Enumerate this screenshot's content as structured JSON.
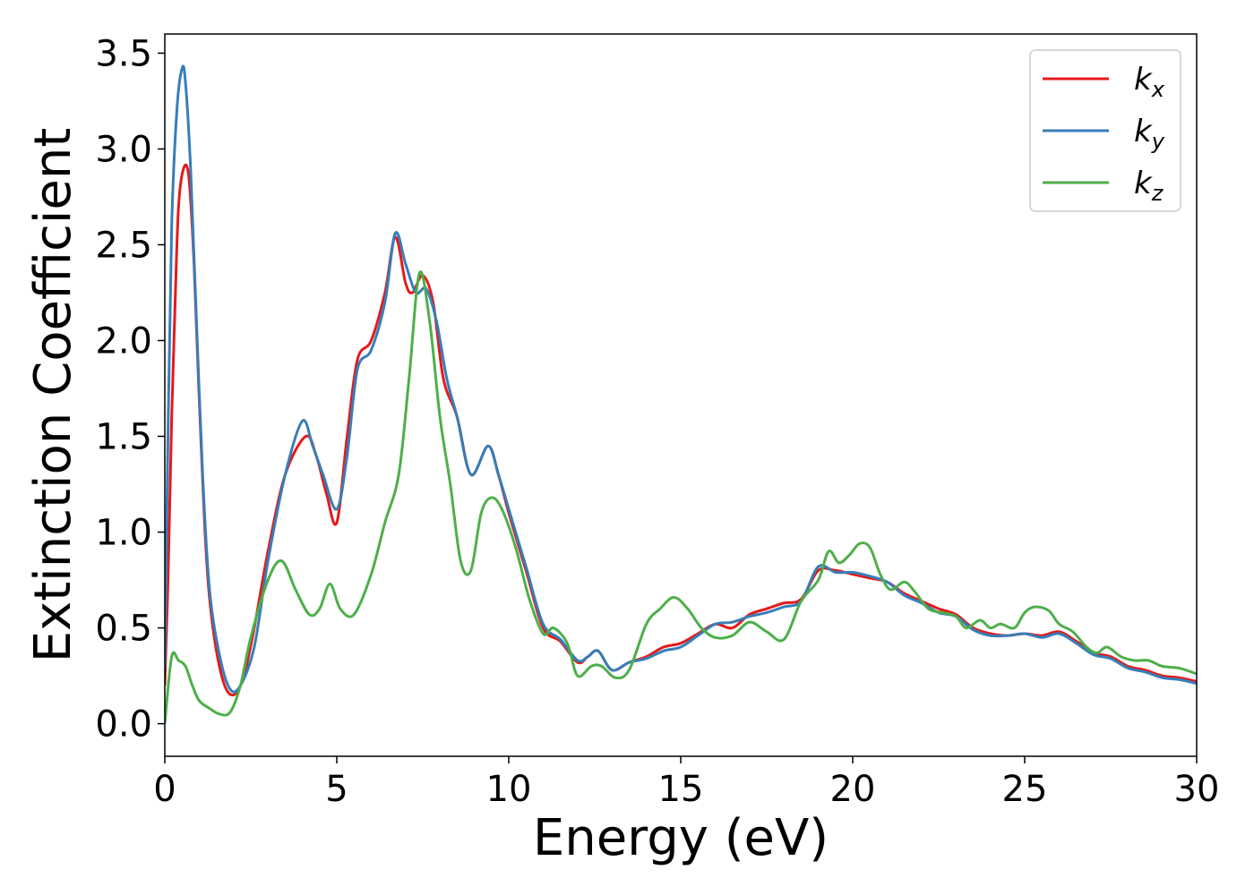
{
  "chart_data": {
    "type": "line",
    "title": "",
    "xlabel": "Energy (eV)",
    "ylabel": "Extinction Coefficient",
    "xlim": [
      0,
      30
    ],
    "ylim": [
      -0.17,
      3.6
    ],
    "xticks": [
      0,
      5,
      10,
      15,
      20,
      25,
      30
    ],
    "xtick_labels": [
      "0",
      "5",
      "10",
      "15",
      "20",
      "25",
      "30"
    ],
    "yticks": [
      0.0,
      0.5,
      1.0,
      1.5,
      2.0,
      2.5,
      3.0,
      3.5
    ],
    "ytick_labels": [
      "0.0",
      "0.5",
      "1.0",
      "1.5",
      "2.0",
      "2.5",
      "3.0",
      "3.5"
    ],
    "grid": false,
    "legend_position": "top-right",
    "series": [
      {
        "name": "k",
        "subscript": "x",
        "color": "#e41a1c",
        "x": [
          0,
          0.1,
          0.2,
          0.3,
          0.4,
          0.55,
          0.7,
          0.85,
          1.0,
          1.2,
          1.4,
          1.7,
          2.0,
          2.3,
          2.6,
          3.0,
          3.5,
          4.1,
          4.4,
          4.7,
          5.0,
          5.3,
          5.6,
          6.0,
          6.4,
          6.7,
          7.0,
          7.2,
          7.5,
          7.8,
          8.1,
          8.5,
          8.9,
          9.4,
          9.7,
          10.0,
          10.5,
          11.0,
          11.5,
          12.0,
          12.3,
          12.6,
          13.0,
          13.5,
          14.0,
          14.5,
          15.0,
          15.5,
          16.0,
          16.5,
          17.0,
          17.5,
          18.0,
          18.5,
          19.0,
          19.5,
          20.0,
          20.5,
          21.0,
          21.5,
          22.0,
          22.5,
          23.0,
          23.5,
          24.0,
          24.5,
          25.0,
          25.5,
          26.0,
          26.5,
          27.0,
          27.5,
          28.0,
          28.5,
          29.0,
          29.5,
          30.0
        ],
        "y": [
          0.2,
          0.8,
          1.6,
          2.2,
          2.7,
          2.9,
          2.85,
          2.4,
          1.7,
          0.9,
          0.5,
          0.22,
          0.15,
          0.25,
          0.5,
          0.9,
          1.3,
          1.5,
          1.4,
          1.2,
          1.05,
          1.5,
          1.9,
          2.0,
          2.25,
          2.54,
          2.3,
          2.25,
          2.34,
          2.2,
          1.8,
          1.6,
          1.3,
          1.45,
          1.3,
          1.1,
          0.8,
          0.5,
          0.43,
          0.32,
          0.35,
          0.38,
          0.28,
          0.32,
          0.35,
          0.4,
          0.42,
          0.47,
          0.52,
          0.5,
          0.57,
          0.6,
          0.63,
          0.65,
          0.8,
          0.8,
          0.78,
          0.76,
          0.74,
          0.68,
          0.64,
          0.6,
          0.57,
          0.5,
          0.47,
          0.46,
          0.47,
          0.46,
          0.48,
          0.43,
          0.37,
          0.35,
          0.3,
          0.28,
          0.25,
          0.24,
          0.22
        ]
      },
      {
        "name": "k",
        "subscript": "y",
        "color": "#377eb8",
        "x": [
          0,
          0.1,
          0.2,
          0.35,
          0.5,
          0.6,
          0.75,
          0.9,
          1.1,
          1.3,
          1.6,
          1.9,
          2.2,
          2.6,
          3.0,
          3.5,
          4.0,
          4.3,
          4.6,
          5.0,
          5.3,
          5.6,
          6.0,
          6.4,
          6.7,
          7.0,
          7.3,
          7.6,
          7.9,
          8.2,
          8.5,
          8.9,
          9.4,
          9.7,
          10.0,
          10.5,
          11.0,
          11.5,
          12.0,
          12.3,
          12.6,
          13.0,
          13.5,
          14.0,
          14.5,
          15.0,
          15.5,
          16.0,
          16.5,
          17.0,
          17.5,
          18.0,
          18.5,
          19.0,
          19.5,
          20.0,
          20.5,
          21.0,
          21.5,
          22.0,
          22.5,
          23.0,
          23.5,
          24.0,
          24.5,
          25.0,
          25.5,
          26.0,
          26.5,
          27.0,
          27.5,
          28.0,
          28.5,
          29.0,
          29.5,
          30.0
        ],
        "y": [
          0.3,
          1.6,
          2.6,
          3.2,
          3.42,
          3.35,
          2.9,
          2.2,
          1.3,
          0.7,
          0.35,
          0.18,
          0.2,
          0.4,
          0.85,
          1.3,
          1.58,
          1.45,
          1.3,
          1.12,
          1.4,
          1.85,
          1.95,
          2.2,
          2.56,
          2.4,
          2.25,
          2.27,
          2.1,
          1.8,
          1.6,
          1.3,
          1.45,
          1.3,
          1.12,
          0.82,
          0.52,
          0.44,
          0.33,
          0.35,
          0.38,
          0.28,
          0.32,
          0.34,
          0.38,
          0.4,
          0.46,
          0.52,
          0.53,
          0.56,
          0.58,
          0.61,
          0.64,
          0.82,
          0.79,
          0.79,
          0.77,
          0.74,
          0.67,
          0.63,
          0.58,
          0.56,
          0.49,
          0.46,
          0.46,
          0.47,
          0.45,
          0.47,
          0.42,
          0.36,
          0.34,
          0.29,
          0.27,
          0.24,
          0.23,
          0.21
        ]
      },
      {
        "name": "k",
        "subscript": "z",
        "color": "#4daf4a",
        "x": [
          0,
          0.2,
          0.4,
          0.6,
          0.8,
          1.0,
          1.3,
          1.6,
          1.9,
          2.2,
          2.5,
          3.0,
          3.4,
          3.8,
          4.2,
          4.5,
          4.8,
          5.1,
          5.5,
          6.0,
          6.4,
          6.8,
          7.1,
          7.4,
          7.7,
          8.0,
          8.3,
          8.6,
          8.9,
          9.2,
          9.5,
          9.8,
          10.2,
          10.6,
          11.0,
          11.3,
          11.7,
          12.0,
          12.4,
          12.7,
          13.1,
          13.5,
          14.0,
          14.4,
          14.8,
          15.2,
          15.6,
          16.0,
          16.5,
          17.0,
          17.5,
          18.0,
          18.5,
          19.0,
          19.3,
          19.6,
          19.9,
          20.2,
          20.5,
          20.8,
          21.1,
          21.5,
          21.8,
          22.2,
          22.6,
          23.0,
          23.3,
          23.7,
          24.0,
          24.3,
          24.7,
          25.0,
          25.3,
          25.7,
          26.0,
          26.4,
          26.8,
          27.1,
          27.4,
          27.8,
          28.2,
          28.6,
          29.0,
          29.5,
          30.0
        ],
        "y": [
          0.0,
          0.35,
          0.33,
          0.3,
          0.2,
          0.12,
          0.08,
          0.05,
          0.06,
          0.2,
          0.45,
          0.75,
          0.85,
          0.7,
          0.57,
          0.6,
          0.73,
          0.6,
          0.57,
          0.78,
          1.05,
          1.3,
          1.8,
          2.35,
          2.1,
          1.6,
          1.25,
          0.85,
          0.8,
          1.1,
          1.18,
          1.12,
          0.92,
          0.65,
          0.47,
          0.5,
          0.42,
          0.25,
          0.3,
          0.3,
          0.24,
          0.28,
          0.52,
          0.6,
          0.66,
          0.6,
          0.5,
          0.45,
          0.46,
          0.53,
          0.48,
          0.44,
          0.64,
          0.75,
          0.9,
          0.84,
          0.88,
          0.94,
          0.92,
          0.78,
          0.7,
          0.74,
          0.69,
          0.6,
          0.58,
          0.56,
          0.5,
          0.54,
          0.5,
          0.52,
          0.5,
          0.58,
          0.61,
          0.59,
          0.52,
          0.48,
          0.4,
          0.37,
          0.4,
          0.35,
          0.33,
          0.33,
          0.3,
          0.29,
          0.26
        ]
      }
    ]
  }
}
